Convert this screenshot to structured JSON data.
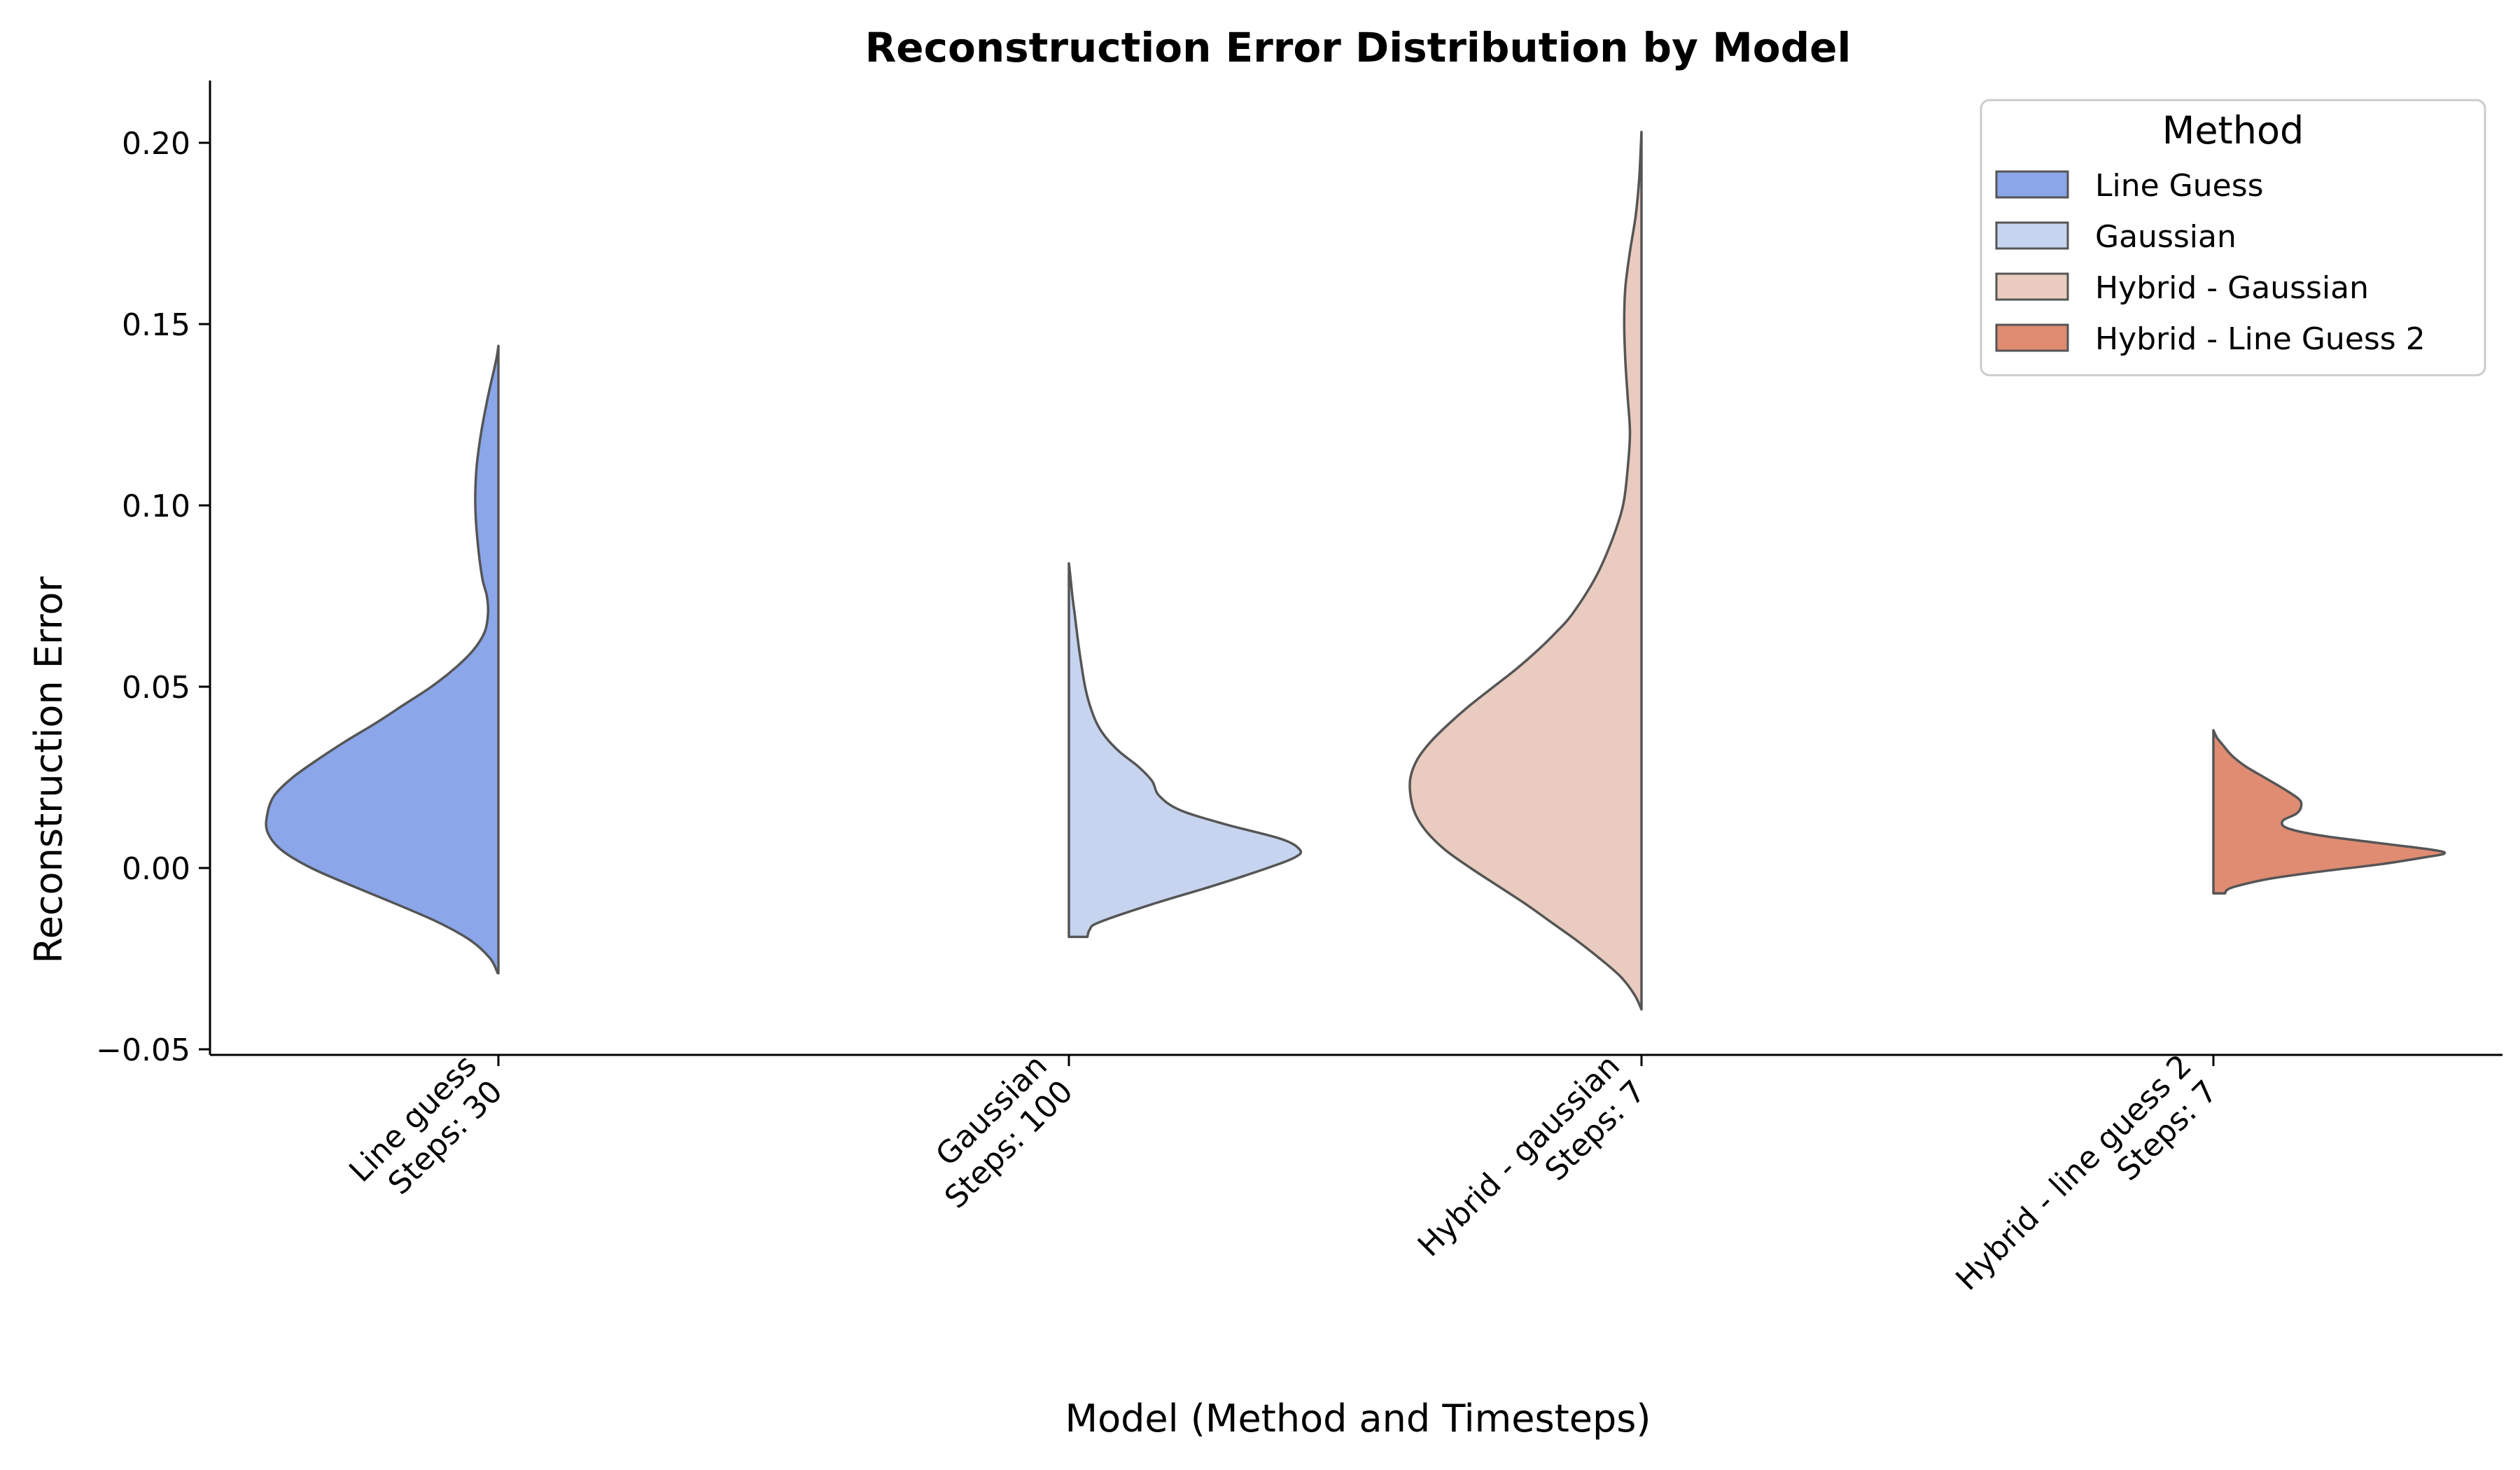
{
  "chart_data": {
    "type": "violin",
    "title": "Reconstruction Error Distribution by Model",
    "xlabel": "Model (Method and Timesteps)",
    "ylabel": "Reconstruction Error",
    "ylim": [
      -0.05,
      0.215
    ],
    "yticks": [
      -0.05,
      0.0,
      0.05,
      0.1,
      0.15,
      0.2
    ],
    "ytick_labels": [
      "−0.05",
      "0.00",
      "0.05",
      "0.10",
      "0.15",
      "0.20"
    ],
    "grid": false,
    "legend": {
      "title": "Method",
      "placement": "top-right",
      "entries": [
        "Line Guess",
        "Gaussian",
        "Hybrid - Gaussian",
        "Hybrid - Line Guess 2"
      ]
    },
    "categories": [
      [
        "Line guess",
        "Steps: 30"
      ],
      [
        "Gaussian",
        "Steps: 100"
      ],
      [
        "Hybrid - gaussian",
        "Steps: 7"
      ],
      [
        "Hybrid - line guess 2",
        "Steps: 7"
      ]
    ],
    "series": [
      {
        "name": "Line Guess",
        "color": "#8BA6E9",
        "side": "left",
        "min": -0.029,
        "max": 0.144,
        "density": [
          [
            -0.029,
            0.003
          ],
          [
            -0.025,
            0.035
          ],
          [
            -0.02,
            0.12
          ],
          [
            -0.015,
            0.26
          ],
          [
            -0.01,
            0.44
          ],
          [
            -0.005,
            0.63
          ],
          [
            0.0,
            0.81
          ],
          [
            0.005,
            0.94
          ],
          [
            0.01,
            1.0
          ],
          [
            0.015,
            1.0
          ],
          [
            0.02,
            0.97
          ],
          [
            0.025,
            0.89
          ],
          [
            0.03,
            0.78
          ],
          [
            0.035,
            0.66
          ],
          [
            0.04,
            0.53
          ],
          [
            0.045,
            0.41
          ],
          [
            0.05,
            0.29
          ],
          [
            0.055,
            0.19
          ],
          [
            0.06,
            0.11
          ],
          [
            0.065,
            0.06
          ],
          [
            0.07,
            0.045
          ],
          [
            0.075,
            0.05
          ],
          [
            0.08,
            0.07
          ],
          [
            0.09,
            0.09
          ],
          [
            0.1,
            0.1
          ],
          [
            0.11,
            0.095
          ],
          [
            0.12,
            0.075
          ],
          [
            0.13,
            0.045
          ],
          [
            0.14,
            0.01
          ],
          [
            0.144,
            0.0
          ]
        ]
      },
      {
        "name": "Gaussian",
        "color": "#C7D4EF",
        "side": "right",
        "min": -0.019,
        "max": 0.084,
        "density": [
          [
            -0.019,
            0.08
          ],
          [
            -0.017,
            0.09
          ],
          [
            -0.015,
            0.13
          ],
          [
            -0.01,
            0.36
          ],
          [
            -0.005,
            0.62
          ],
          [
            0.0,
            0.86
          ],
          [
            0.003,
            0.98
          ],
          [
            0.005,
            1.0
          ],
          [
            0.008,
            0.92
          ],
          [
            0.012,
            0.68
          ],
          [
            0.016,
            0.48
          ],
          [
            0.02,
            0.39
          ],
          [
            0.024,
            0.36
          ],
          [
            0.028,
            0.3
          ],
          [
            0.032,
            0.22
          ],
          [
            0.036,
            0.16
          ],
          [
            0.04,
            0.12
          ],
          [
            0.045,
            0.09
          ],
          [
            0.05,
            0.07
          ],
          [
            0.06,
            0.045
          ],
          [
            0.07,
            0.025
          ],
          [
            0.075,
            0.015
          ],
          [
            0.08,
            0.007
          ],
          [
            0.084,
            0.0
          ]
        ]
      },
      {
        "name": "Hybrid - Gaussian",
        "color": "#E9CCBF",
        "side": "left",
        "min": -0.039,
        "max": 0.203,
        "density": [
          [
            -0.039,
            0.0
          ],
          [
            -0.035,
            0.03
          ],
          [
            -0.03,
            0.09
          ],
          [
            -0.025,
            0.18
          ],
          [
            -0.02,
            0.28
          ],
          [
            -0.015,
            0.39
          ],
          [
            -0.01,
            0.5
          ],
          [
            -0.005,
            0.62
          ],
          [
            0.0,
            0.74
          ],
          [
            0.005,
            0.85
          ],
          [
            0.01,
            0.93
          ],
          [
            0.015,
            0.98
          ],
          [
            0.02,
            1.0
          ],
          [
            0.025,
            1.0
          ],
          [
            0.03,
            0.97
          ],
          [
            0.035,
            0.91
          ],
          [
            0.04,
            0.83
          ],
          [
            0.045,
            0.74
          ],
          [
            0.05,
            0.64
          ],
          [
            0.055,
            0.54
          ],
          [
            0.06,
            0.45
          ],
          [
            0.065,
            0.37
          ],
          [
            0.07,
            0.3
          ],
          [
            0.08,
            0.2
          ],
          [
            0.09,
            0.13
          ],
          [
            0.1,
            0.08
          ],
          [
            0.11,
            0.06
          ],
          [
            0.12,
            0.05
          ],
          [
            0.13,
            0.06
          ],
          [
            0.14,
            0.07
          ],
          [
            0.15,
            0.075
          ],
          [
            0.16,
            0.07
          ],
          [
            0.17,
            0.05
          ],
          [
            0.18,
            0.025
          ],
          [
            0.19,
            0.01
          ],
          [
            0.203,
            0.0
          ]
        ]
      },
      {
        "name": "Hybrid - Line Guess 2",
        "color": "#DF8C73",
        "side": "right",
        "min": -0.007,
        "max": 0.038,
        "density": [
          [
            -0.007,
            0.05
          ],
          [
            -0.006,
            0.06
          ],
          [
            -0.005,
            0.1
          ],
          [
            -0.003,
            0.24
          ],
          [
            -0.001,
            0.46
          ],
          [
            0.001,
            0.72
          ],
          [
            0.003,
            0.92
          ],
          [
            0.004,
            1.0
          ],
          [
            0.005,
            0.95
          ],
          [
            0.007,
            0.7
          ],
          [
            0.009,
            0.46
          ],
          [
            0.011,
            0.32
          ],
          [
            0.013,
            0.3
          ],
          [
            0.015,
            0.36
          ],
          [
            0.017,
            0.38
          ],
          [
            0.019,
            0.37
          ],
          [
            0.022,
            0.3
          ],
          [
            0.025,
            0.22
          ],
          [
            0.028,
            0.14
          ],
          [
            0.031,
            0.08
          ],
          [
            0.034,
            0.04
          ],
          [
            0.036,
            0.015
          ],
          [
            0.038,
            0.0
          ]
        ]
      }
    ]
  }
}
